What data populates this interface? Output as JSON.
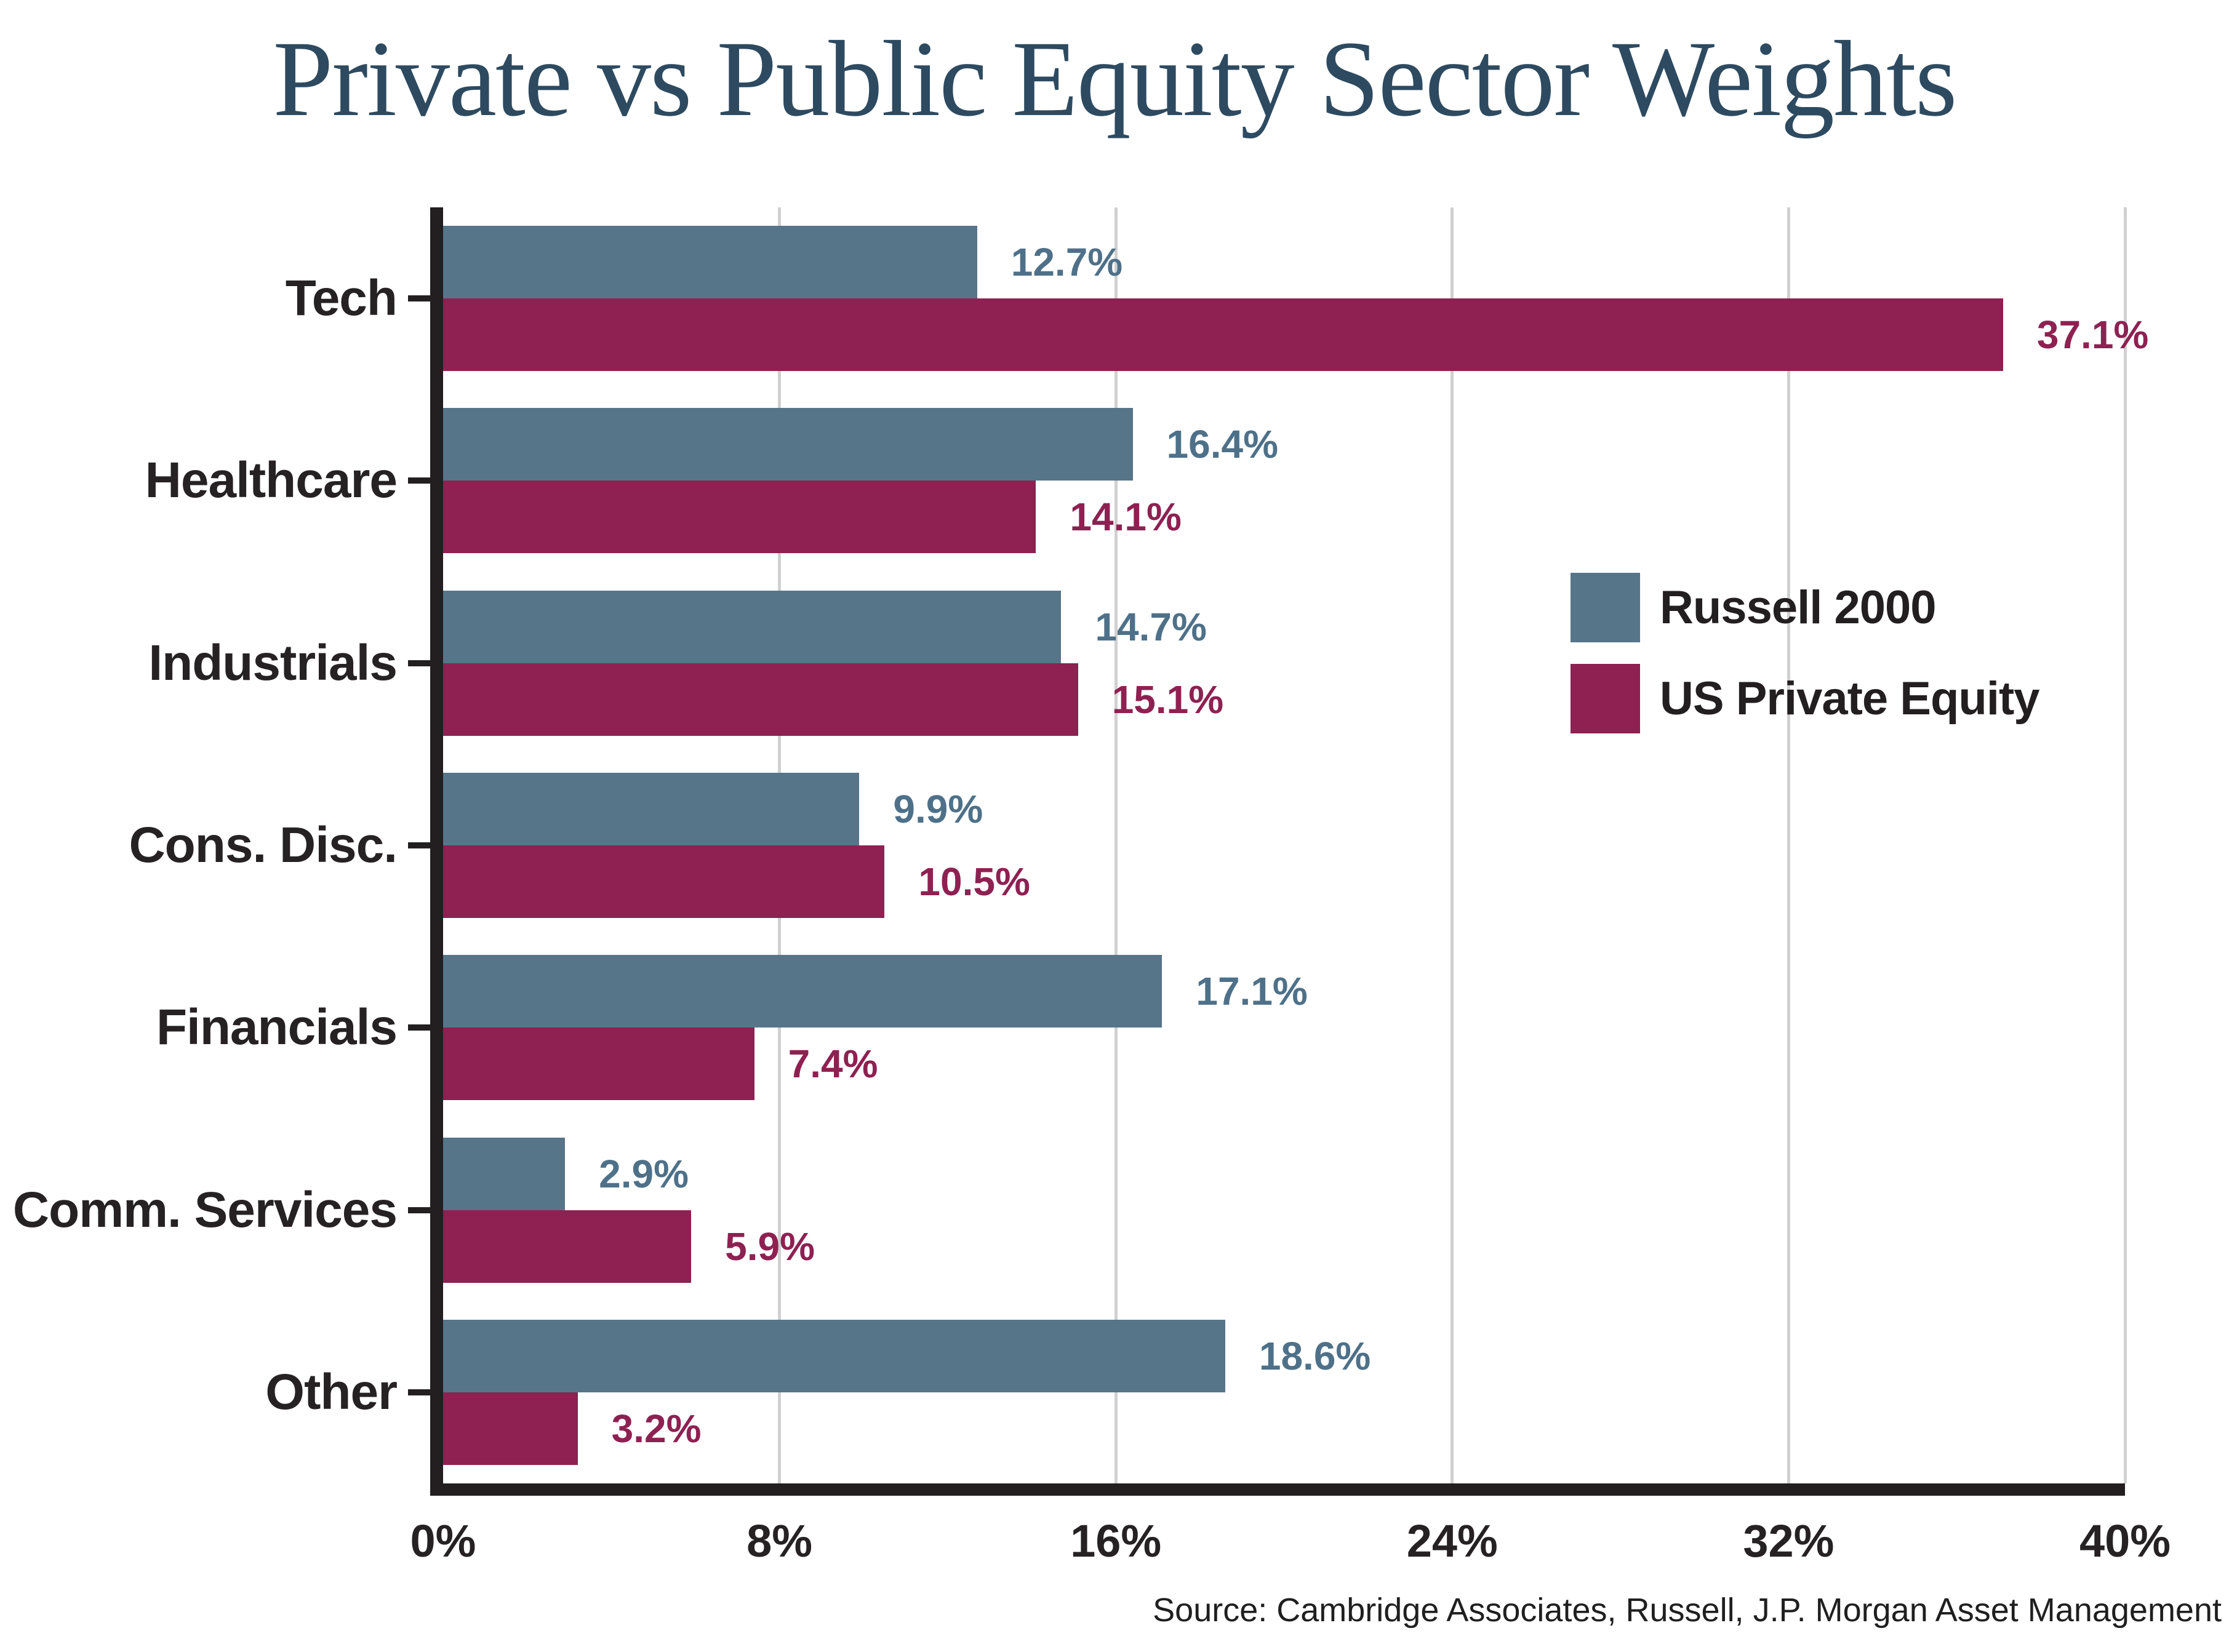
{
  "colors": {
    "background": "#ffffff",
    "title": "#2d4a60",
    "text": "#262223",
    "gridline": "#d0d0d0",
    "axis": "#231f20",
    "russell_blue": "#567589",
    "private_equity_maroon": "#8e2151",
    "russell_label_blue": "#4e7189"
  },
  "chart_data": {
    "type": "bar",
    "orientation": "horizontal",
    "title": "Private vs Public Equity Sector Weights",
    "categories": [
      "Tech",
      "Healthcare",
      "Industrials",
      "Cons. Disc.",
      "Financials",
      "Comm. Services",
      "Other"
    ],
    "series": [
      {
        "name": "Russell 2000",
        "color": "#567589",
        "label_color": "#4e7189",
        "values": [
          12.7,
          16.4,
          14.7,
          9.9,
          17.1,
          2.9,
          18.6
        ],
        "labels": [
          "12.7%",
          "16.4%",
          "14.7%",
          "9.9%",
          "17.1%",
          "2.9%",
          "18.6%"
        ]
      },
      {
        "name": "US Private Equity",
        "color": "#8e2151",
        "label_color": "#8e2151",
        "values": [
          37.1,
          14.1,
          15.1,
          10.5,
          7.4,
          5.9,
          3.2
        ],
        "labels": [
          "37.1%",
          "14.1%",
          "15.1%",
          "10.5%",
          "7.4%",
          "5.9%",
          "3.2%"
        ]
      }
    ],
    "x_ticks": [
      "0%",
      "8%",
      "16%",
      "24%",
      "32%",
      "40%"
    ],
    "xlim": [
      0,
      40
    ],
    "grid": true,
    "legend_position": "center-right",
    "source": "Source: Cambridge Associates, Russell, J.P. Morgan Asset Management"
  }
}
